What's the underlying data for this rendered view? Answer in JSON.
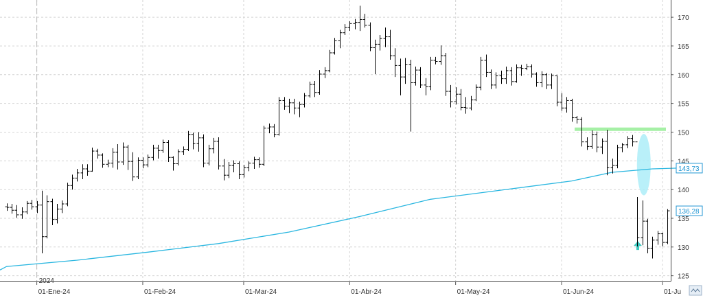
{
  "chart_data": {
    "type": "ohlc",
    "grid": true,
    "x_ticks": [
      "01-Ene-24",
      "01-Feb-24",
      "01-Mar-24",
      "01-Abr-24",
      "01-May-24",
      "01-Jun-24",
      "01-Ju"
    ],
    "year_label": "2024",
    "y_ticks": [
      125,
      130,
      135,
      140,
      145,
      150,
      155,
      160,
      165,
      170
    ],
    "ylim": [
      124,
      173
    ],
    "last_price_label": "136,28",
    "ma_label": "143,73",
    "colors": {
      "bars": "#000000",
      "moving_average": "#29b6e0",
      "resistance": "#a6f0a6",
      "ellipse": "#a8ecf7",
      "arrow": "#3cc9c0",
      "price_tag": "#2196d3",
      "grid": "#d4d4d4"
    },
    "resistance_level": 150.5,
    "series": [
      {
        "kind": "ohlc",
        "values": [
          [
            137,
            137.6,
            136.3,
            136.9
          ],
          [
            136.9,
            137.5,
            135.8,
            136.4
          ],
          [
            136.4,
            137.3,
            135.1,
            135.6
          ],
          [
            135.6,
            136.9,
            134.9,
            136.1
          ],
          [
            136.1,
            138,
            135.7,
            137.6
          ],
          [
            137.6,
            138.2,
            136.5,
            137
          ],
          [
            137,
            138,
            135.9,
            137.3
          ],
          [
            137.3,
            139.8,
            128.9,
            131.8
          ],
          [
            131.8,
            139,
            131.5,
            137.9
          ],
          [
            137.9,
            138.4,
            133.8,
            134.8
          ],
          [
            134.8,
            137.5,
            134.1,
            136.6
          ],
          [
            136.6,
            138.1,
            135.9,
            137.5
          ],
          [
            137.5,
            141.2,
            137.1,
            140.7
          ],
          [
            140.7,
            142.6,
            140,
            142
          ],
          [
            142,
            143.6,
            141.4,
            142.9
          ],
          [
            142.9,
            144.4,
            141.8,
            143.6
          ],
          [
            143.6,
            144.4,
            142.4,
            143.2
          ],
          [
            143.2,
            147.3,
            143.1,
            146.7
          ],
          [
            146.7,
            147.1,
            145.4,
            146
          ],
          [
            146,
            146.3,
            143.8,
            144.4
          ],
          [
            144.4,
            145.2,
            143.9,
            144.6
          ],
          [
            144.6,
            147.2,
            143.8,
            146.5
          ],
          [
            146.5,
            147.9,
            143.5,
            144.8
          ],
          [
            144.8,
            148.2,
            144.3,
            147.4
          ],
          [
            147.4,
            147.8,
            143.4,
            144.9
          ],
          [
            144.9,
            146.5,
            141.5,
            142.2
          ],
          [
            142.2,
            145.6,
            141.8,
            145.1
          ],
          [
            145.1,
            145.6,
            143.7,
            144.3
          ],
          [
            144.3,
            146.1,
            143.9,
            145.6
          ],
          [
            145.6,
            147.8,
            145.1,
            147.2
          ],
          [
            147.2,
            147.8,
            145.4,
            146.8
          ],
          [
            146.8,
            148.7,
            146.4,
            148.2
          ],
          [
            148.2,
            148.6,
            144.8,
            145.6
          ],
          [
            145.6,
            145.8,
            143.3,
            144.5
          ],
          [
            144.5,
            147,
            144.2,
            146.6
          ],
          [
            146.6,
            147.5,
            146,
            147
          ],
          [
            147,
            150.2,
            146.7,
            149.6
          ],
          [
            149.6,
            149.9,
            147,
            148
          ],
          [
            148,
            150,
            146.6,
            149
          ],
          [
            149,
            149.6,
            143.9,
            144.6
          ],
          [
            144.6,
            147.8,
            144.2,
            147.1
          ],
          [
            147.1,
            149,
            146.3,
            148.4
          ],
          [
            148.4,
            149.1,
            143.5,
            144.1
          ],
          [
            144.1,
            145.3,
            141.6,
            142.5
          ],
          [
            142.5,
            144.8,
            142,
            144.2
          ],
          [
            144.2,
            145.1,
            143,
            144.5
          ],
          [
            144.5,
            144.9,
            141.8,
            142.6
          ],
          [
            142.6,
            144.3,
            142.1,
            143.8
          ],
          [
            143.8,
            144.9,
            143.2,
            144.6
          ],
          [
            144.6,
            145.7,
            143.6,
            145.2
          ],
          [
            145.2,
            145.6,
            143.8,
            144.4
          ],
          [
            144.4,
            151.1,
            144.1,
            150.7
          ],
          [
            150.7,
            151.5,
            149.8,
            150.9
          ],
          [
            150.9,
            151.4,
            149.1,
            149.6
          ],
          [
            149.6,
            156.1,
            149.4,
            155.5
          ],
          [
            155.5,
            156.1,
            153.9,
            154.5
          ],
          [
            154.5,
            155.8,
            153.3,
            155.1
          ],
          [
            155.1,
            155.8,
            153.1,
            154.2
          ],
          [
            154.2,
            155.3,
            152.6,
            154.8
          ],
          [
            154.8,
            156.8,
            154.3,
            156.3
          ],
          [
            156.3,
            158.8,
            156,
            158.3
          ],
          [
            158.3,
            158.9,
            156.1,
            156.9
          ],
          [
            156.9,
            160.8,
            156.5,
            160.1
          ],
          [
            160.1,
            161.3,
            159.4,
            160.7
          ],
          [
            160.7,
            164.3,
            160.4,
            163.8
          ],
          [
            163.8,
            166.4,
            163.5,
            165.9
          ],
          [
            165.9,
            167.8,
            164.6,
            167.3
          ],
          [
            167.3,
            168.8,
            166.9,
            168.2
          ],
          [
            168.2,
            169.3,
            167.6,
            168.9
          ],
          [
            168.9,
            169.7,
            167.9,
            169.1
          ],
          [
            169.1,
            172,
            167.6,
            169.6
          ],
          [
            169.6,
            170.6,
            168.2,
            168.6
          ],
          [
            168.6,
            169.1,
            164.1,
            164.7
          ],
          [
            164.7,
            166.1,
            160.1,
            165.3
          ],
          [
            165.3,
            166.9,
            164.2,
            166.3
          ],
          [
            166.3,
            168.2,
            164.8,
            166.6
          ],
          [
            166.6,
            167.8,
            162.6,
            163.3
          ],
          [
            163.3,
            164.6,
            159.6,
            161.6
          ],
          [
            161.6,
            162.8,
            156.4,
            159.6
          ],
          [
            159.6,
            162.9,
            158.4,
            161.8
          ],
          [
            161.8,
            162.6,
            150.1,
            158.6
          ],
          [
            158.6,
            161.4,
            158.1,
            160.8
          ],
          [
            160.8,
            161.3,
            157.7,
            158.2
          ],
          [
            158.2,
            159.4,
            156.4,
            157.9
          ],
          [
            157.9,
            163.1,
            157.3,
            162.5
          ],
          [
            162.5,
            163.1,
            161.8,
            162.3
          ],
          [
            162.3,
            165.1,
            161.7,
            163.3
          ],
          [
            163.3,
            163.8,
            156.3,
            157.1
          ],
          [
            157.1,
            158.2,
            154.3,
            155.3
          ],
          [
            155.3,
            157.8,
            154.8,
            156.6
          ],
          [
            156.6,
            157.5,
            153.8,
            154.3
          ],
          [
            154.3,
            156.1,
            153.2,
            154.2
          ],
          [
            154.2,
            156.3,
            153.8,
            155.6
          ],
          [
            155.6,
            158.3,
            155.4,
            157.8
          ],
          [
            157.8,
            163.1,
            157.3,
            162.5
          ],
          [
            162.5,
            163.5,
            159.6,
            160.4
          ],
          [
            160.4,
            160.9,
            157.5,
            158.2
          ],
          [
            158.2,
            160.4,
            157.6,
            159.8
          ],
          [
            159.8,
            160.7,
            158.4,
            159.3
          ],
          [
            159.3,
            161.4,
            158.4,
            160.7
          ],
          [
            160.7,
            161.3,
            158.1,
            158.8
          ],
          [
            158.8,
            161.8,
            158.6,
            161.2
          ],
          [
            161.2,
            161.7,
            159.8,
            161.1
          ],
          [
            161.1,
            161.9,
            160.8,
            161.4
          ],
          [
            161.4,
            161.8,
            159.5,
            160.1
          ],
          [
            160.1,
            160.4,
            157.9,
            158.6
          ],
          [
            158.6,
            160.6,
            157.8,
            160
          ],
          [
            160,
            160.3,
            157.5,
            158.2
          ],
          [
            158.2,
            160.2,
            157.5,
            159.8
          ],
          [
            159.8,
            159.9,
            154.5,
            155.2
          ],
          [
            155.2,
            156.8,
            153.7,
            154.2
          ],
          [
            154.2,
            156.1,
            153.4,
            155.5
          ],
          [
            155.5,
            155.8,
            151.8,
            152.5
          ],
          [
            152.5,
            152.8,
            151.5,
            152.2
          ],
          [
            152.2,
            152.6,
            147.5,
            148.3
          ],
          [
            148.3,
            149.1,
            146.9,
            147.5
          ],
          [
            147.5,
            150.3,
            147.1,
            149.6
          ],
          [
            149.6,
            150.1,
            146.5,
            147.4
          ],
          [
            147.4,
            148.9,
            146.2,
            148.4
          ],
          [
            148.4,
            150.4,
            142.5,
            143.8
          ],
          [
            143.8,
            145.4,
            142.8,
            144.2
          ],
          [
            144.2,
            147.8,
            143.7,
            147.3
          ],
          [
            147.3,
            148.1,
            146.5,
            147.8
          ],
          [
            147.8,
            149.3,
            147.2,
            148.9
          ],
          [
            148.9,
            149.5,
            147.5,
            148.3
          ],
          [
            148.3,
            138.7,
            130.1,
            131.6
          ],
          [
            131.6,
            138.1,
            130.3,
            134.5
          ],
          [
            134.5,
            134.9,
            128.9,
            129.8
          ],
          [
            129.8,
            131.8,
            128,
            131.2
          ],
          [
            131.2,
            132.8,
            130.4,
            132.3
          ],
          [
            132.3,
            132.5,
            130.1,
            130.8
          ],
          [
            130.8,
            136.6,
            130.5,
            136.3
          ]
        ]
      },
      {
        "kind": "moving_average",
        "values": [
          [
            0,
            126.6
          ],
          [
            14,
            127.7
          ],
          [
            28,
            129.1
          ],
          [
            42,
            130.6
          ],
          [
            56,
            132.6
          ],
          [
            70,
            135.3
          ],
          [
            84,
            138.3
          ],
          [
            98,
            139.9
          ],
          [
            112,
            141.5
          ],
          [
            120,
            143
          ],
          [
            128,
            143.6
          ],
          [
            133,
            143.73
          ]
        ]
      }
    ],
    "annotations": [
      {
        "kind": "ellipse",
        "x": 126.3,
        "y_range": [
          139,
          149.7
        ]
      },
      {
        "kind": "up-arrow",
        "x": 125.1,
        "y": 130.2
      }
    ]
  }
}
